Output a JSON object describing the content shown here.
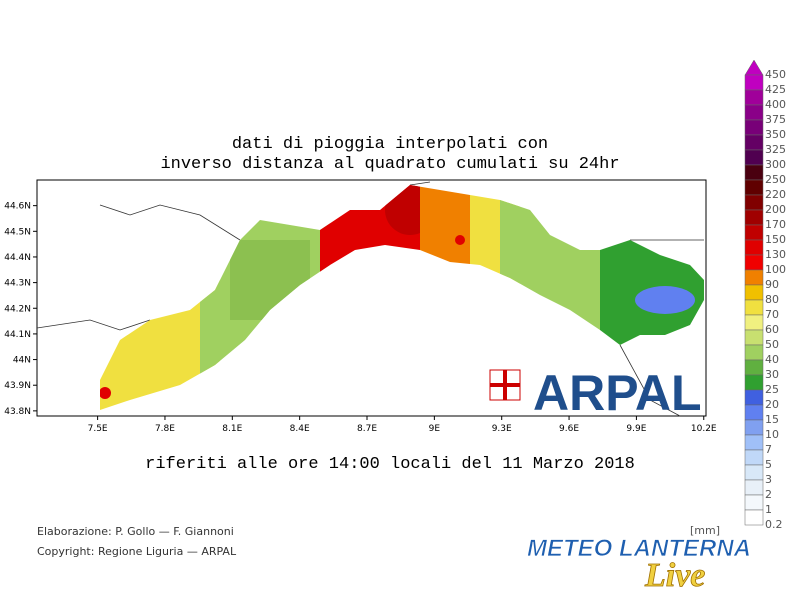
{
  "map": {
    "title_lines": [
      "dati di pioggia interpolati con",
      "inverso distanza al quadrato cumulati su 24hr"
    ],
    "subtitle": "riferiti alle ore 14:00 locali del 11 Marzo 2018",
    "xlim": [
      7.23,
      10.21
    ],
    "ylim": [
      43.78,
      44.7
    ],
    "yticks": [
      {
        "value": 44.6,
        "label": "44.6N"
      },
      {
        "value": 44.5,
        "label": "44.5N"
      },
      {
        "value": 44.4,
        "label": "44.4N"
      },
      {
        "value": 44.3,
        "label": "44.3N"
      },
      {
        "value": 44.2,
        "label": "44.2N"
      },
      {
        "value": 44.1,
        "label": "44.1N"
      },
      {
        "value": 44.0,
        "label": "44N"
      },
      {
        "value": 43.9,
        "label": "43.9N"
      },
      {
        "value": 43.8,
        "label": "43.8N"
      }
    ],
    "xticks": [
      {
        "value": 7.5,
        "label": "7.5E"
      },
      {
        "value": 7.8,
        "label": "7.8E"
      },
      {
        "value": 8.1,
        "label": "8.1E"
      },
      {
        "value": 8.4,
        "label": "8.4E"
      },
      {
        "value": 8.7,
        "label": "8.7E"
      },
      {
        "value": 9.0,
        "label": "9E"
      },
      {
        "value": 9.3,
        "label": "9.3E"
      },
      {
        "value": 9.6,
        "label": "9.6E"
      },
      {
        "value": 9.9,
        "label": "9.9E"
      },
      {
        "value": 10.2,
        "label": "10.2E"
      }
    ]
  },
  "colorbar": {
    "units": "[mm]",
    "levels": [
      450,
      425,
      400,
      375,
      350,
      325,
      300,
      250,
      220,
      200,
      170,
      150,
      130,
      100,
      90,
      80,
      70,
      60,
      50,
      40,
      30,
      25,
      20,
      15,
      10,
      7,
      5,
      3,
      2,
      1,
      0.2
    ],
    "colors": [
      "#c000c0",
      "#a0009a",
      "#8a0088",
      "#780078",
      "#640064",
      "#500050",
      "#4a0010",
      "#600000",
      "#800000",
      "#a00000",
      "#c00000",
      "#e00000",
      "#f00000",
      "#f08000",
      "#f0c000",
      "#f0e040",
      "#f0f080",
      "#c8e070",
      "#a0d060",
      "#60b040",
      "#30a030",
      "#4060e0",
      "#6080f0",
      "#80a0f0",
      "#a0c0f8",
      "#c0d8f8",
      "#d8e8f8",
      "#e8f0f8",
      "#f4f8fc",
      "#ffffff"
    ]
  },
  "credits": [
    "Elaborazione: P. Gollo — F. Giannoni",
    "Copyright: Regione Liguria — ARPAL"
  ],
  "logos": {
    "arpal": "ARPAL",
    "lanterna": "METEO LANTERNA",
    "live": "Live"
  }
}
